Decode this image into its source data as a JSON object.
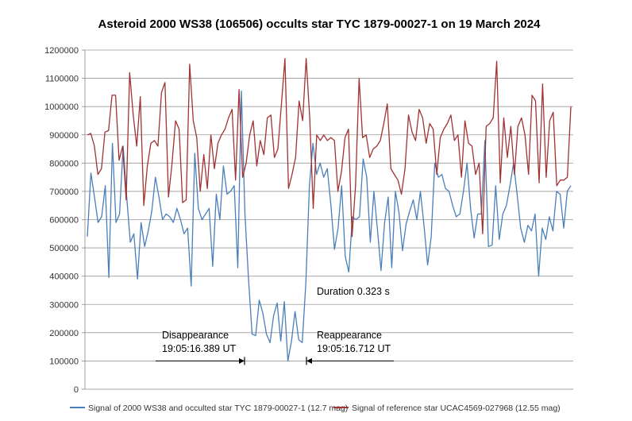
{
  "chart_data": {
    "type": "line",
    "title": "Asteroid 2000 WS38 (106506) occults star TYC 1879-00027-1 on 19 March 2024",
    "xlabel": "",
    "ylabel": "",
    "ylim": [
      0,
      1200000
    ],
    "yticks": [
      0,
      100000,
      200000,
      300000,
      400000,
      500000,
      600000,
      700000,
      800000,
      900000,
      1000000,
      1100000,
      1200000
    ],
    "ytick_labels": [
      "0",
      "100000",
      "200000",
      "300000",
      "400000",
      "500000",
      "600000",
      "700000",
      "800000",
      "900000",
      "1000000",
      "1100000",
      "1200000"
    ],
    "grid": true,
    "legend_position": "bottom",
    "series": [
      {
        "name": "Signal of 2000 WS38 and occulted star TYC 1879-00027-1 (12.7 mag)",
        "color": "#4a7ebb",
        "values": [
          540000,
          765000,
          680000,
          590000,
          610000,
          720000,
          395000,
          870000,
          590000,
          620000,
          860000,
          680000,
          520000,
          550000,
          390000,
          590000,
          505000,
          560000,
          630000,
          750000,
          680000,
          600000,
          620000,
          610000,
          590000,
          640000,
          600000,
          550000,
          570000,
          365000,
          835000,
          640000,
          600000,
          620000,
          640000,
          435000,
          690000,
          600000,
          790000,
          690000,
          700000,
          720000,
          430000,
          1055000,
          620000,
          390000,
          195000,
          190000,
          315000,
          270000,
          195000,
          165000,
          260000,
          305000,
          170000,
          310000,
          100000,
          170000,
          275000,
          175000,
          165000,
          375000,
          720000,
          870000,
          760000,
          800000,
          750000,
          780000,
          650000,
          495000,
          570000,
          720000,
          470000,
          415000,
          610000,
          600000,
          610000,
          815000,
          750000,
          520000,
          700000,
          565000,
          420000,
          590000,
          680000,
          430000,
          700000,
          625000,
          490000,
          585000,
          630000,
          670000,
          600000,
          700000,
          580000,
          440000,
          540000,
          800000,
          750000,
          760000,
          710000,
          700000,
          650000,
          610000,
          620000,
          700000,
          800000,
          640000,
          535000,
          620000,
          620000,
          880000,
          505000,
          510000,
          720000,
          530000,
          620000,
          650000,
          720000,
          800000,
          690000,
          570000,
          520000,
          580000,
          560000,
          620000,
          400000,
          570000,
          530000,
          610000,
          560000,
          700000,
          690000,
          570000,
          700000,
          720000
        ]
      },
      {
        "name": "Signal of reference star UCAC4569-027968 (12.55 mag)",
        "color": "#a03232",
        "values": [
          900000,
          905000,
          860000,
          760000,
          780000,
          910000,
          915000,
          1040000,
          1040000,
          810000,
          860000,
          670000,
          1120000,
          970000,
          860000,
          1035000,
          650000,
          790000,
          870000,
          880000,
          860000,
          1050000,
          1085000,
          680000,
          800000,
          950000,
          920000,
          660000,
          670000,
          1150000,
          950000,
          890000,
          700000,
          830000,
          710000,
          900000,
          780000,
          870000,
          900000,
          920000,
          960000,
          990000,
          740000,
          1060000,
          750000,
          800000,
          900000,
          950000,
          790000,
          880000,
          830000,
          960000,
          970000,
          820000,
          850000,
          1010000,
          1170000,
          710000,
          760000,
          820000,
          1020000,
          950000,
          1170000,
          960000,
          640000,
          900000,
          880000,
          900000,
          880000,
          890000,
          880000,
          700000,
          770000,
          890000,
          920000,
          540000,
          720000,
          1100000,
          890000,
          900000,
          820000,
          850000,
          860000,
          880000,
          940000,
          1010000,
          780000,
          760000,
          740000,
          690000,
          780000,
          970000,
          910000,
          880000,
          990000,
          960000,
          870000,
          940000,
          920000,
          760000,
          890000,
          920000,
          940000,
          970000,
          880000,
          900000,
          750000,
          950000,
          870000,
          860000,
          760000,
          800000,
          550000,
          930000,
          940000,
          960000,
          1160000,
          730000,
          960000,
          820000,
          930000,
          760000,
          930000,
          960000,
          900000,
          760000,
          1040000,
          1020000,
          730000,
          1080000,
          750000,
          950000,
          980000,
          720000,
          740000,
          740000,
          750000,
          1000000
        ]
      }
    ],
    "annotations": {
      "duration": "Duration 0.323 s",
      "disappearance_label": "Disappearance",
      "disappearance_time": "19:05:16.389 UT",
      "reappearance_label": "Reappearance",
      "reappearance_time": "19:05:16.712 UT"
    }
  }
}
